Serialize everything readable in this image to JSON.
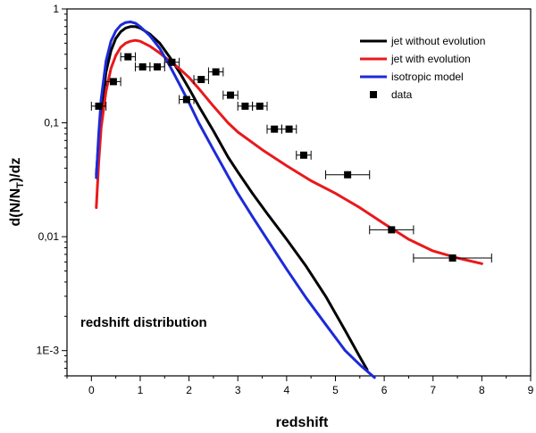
{
  "chart_data": {
    "type": "line",
    "title": "",
    "xlabel": "redshift",
    "ylabel_main": "d(N/N",
    "ylabel_sub": "T",
    "ylabel_tail": ")/dz",
    "annotation": "redshift distribution",
    "xlim": [
      -0.5,
      9
    ],
    "ylim": [
      0.0006,
      1
    ],
    "y_scale": "log",
    "grid": false,
    "legend_position": "top-right",
    "x_ticks": [
      0,
      1,
      2,
      3,
      4,
      5,
      6,
      7,
      8,
      9
    ],
    "x_tick_labels": [
      "0",
      "1",
      "2",
      "3",
      "4",
      "5",
      "6",
      "7",
      "8",
      "9"
    ],
    "y_ticks": [
      0.001,
      0.01,
      0.1,
      1
    ],
    "y_tick_labels": [
      "1E-3",
      "0,01",
      "0,1",
      "1"
    ],
    "series": [
      {
        "name": "jet without evolution",
        "color": "#000000",
        "x": [
          0.1,
          0.15,
          0.2,
          0.3,
          0.4,
          0.5,
          0.6,
          0.7,
          0.8,
          0.9,
          1.0,
          1.2,
          1.4,
          1.6,
          1.8,
          2.0,
          2.2,
          2.5,
          2.8,
          3.0,
          3.3,
          3.6,
          4.0,
          4.4,
          4.8,
          5.2,
          5.5,
          5.65
        ],
        "y": [
          0.035,
          0.07,
          0.13,
          0.28,
          0.43,
          0.55,
          0.63,
          0.68,
          0.7,
          0.7,
          0.68,
          0.6,
          0.5,
          0.38,
          0.28,
          0.2,
          0.14,
          0.085,
          0.05,
          0.037,
          0.024,
          0.016,
          0.0095,
          0.0055,
          0.003,
          0.0015,
          0.00088,
          0.00068
        ]
      },
      {
        "name": "jet with evolution",
        "color": "#e8191c",
        "x": [
          0.1,
          0.15,
          0.2,
          0.3,
          0.4,
          0.5,
          0.6,
          0.7,
          0.8,
          0.9,
          1.0,
          1.2,
          1.4,
          1.6,
          1.8,
          2.0,
          2.2,
          2.5,
          2.8,
          3.0,
          3.5,
          4.0,
          4.5,
          5.0,
          5.5,
          6.0,
          6.5,
          7.0,
          7.5,
          8.0
        ],
        "y": [
          0.018,
          0.045,
          0.09,
          0.19,
          0.3,
          0.39,
          0.46,
          0.5,
          0.52,
          0.53,
          0.52,
          0.47,
          0.41,
          0.35,
          0.3,
          0.25,
          0.2,
          0.14,
          0.1,
          0.083,
          0.058,
          0.042,
          0.031,
          0.024,
          0.018,
          0.013,
          0.0095,
          0.0075,
          0.0065,
          0.0058
        ]
      },
      {
        "name": "isotropic model",
        "color": "#1c2ad9",
        "x": [
          0.1,
          0.15,
          0.2,
          0.3,
          0.4,
          0.5,
          0.6,
          0.7,
          0.8,
          0.9,
          1.0,
          1.2,
          1.4,
          1.6,
          1.8,
          2.0,
          2.2,
          2.5,
          2.8,
          3.0,
          3.3,
          3.6,
          4.0,
          4.4,
          4.8,
          5.2,
          5.5,
          5.8
        ],
        "y": [
          0.033,
          0.08,
          0.16,
          0.35,
          0.52,
          0.64,
          0.72,
          0.76,
          0.77,
          0.75,
          0.7,
          0.58,
          0.45,
          0.32,
          0.22,
          0.15,
          0.1,
          0.058,
          0.034,
          0.024,
          0.015,
          0.0095,
          0.0052,
          0.0029,
          0.0017,
          0.001,
          0.00075,
          0.00058
        ]
      }
    ],
    "data_points": {
      "name": "data",
      "marker": "square",
      "color": "#000000",
      "points": [
        {
          "x": 0.15,
          "y": 0.14,
          "xerr": 0.15
        },
        {
          "x": 0.45,
          "y": 0.23,
          "xerr": 0.15
        },
        {
          "x": 0.75,
          "y": 0.38,
          "xerr": 0.15
        },
        {
          "x": 1.05,
          "y": 0.31,
          "xerr": 0.15
        },
        {
          "x": 1.35,
          "y": 0.31,
          "xerr": 0.15
        },
        {
          "x": 1.65,
          "y": 0.34,
          "xerr": 0.15
        },
        {
          "x": 1.95,
          "y": 0.16,
          "xerr": 0.15
        },
        {
          "x": 2.25,
          "y": 0.24,
          "xerr": 0.15
        },
        {
          "x": 2.55,
          "y": 0.28,
          "xerr": 0.15
        },
        {
          "x": 2.85,
          "y": 0.175,
          "xerr": 0.15
        },
        {
          "x": 3.15,
          "y": 0.14,
          "xerr": 0.15
        },
        {
          "x": 3.45,
          "y": 0.14,
          "xerr": 0.15
        },
        {
          "x": 3.75,
          "y": 0.088,
          "xerr": 0.15
        },
        {
          "x": 4.05,
          "y": 0.088,
          "xerr": 0.15
        },
        {
          "x": 4.35,
          "y": 0.052,
          "xerr": 0.15
        },
        {
          "x": 5.25,
          "y": 0.035,
          "xerr": 0.45
        },
        {
          "x": 6.15,
          "y": 0.0115,
          "xerr": 0.45
        },
        {
          "x": 7.4,
          "y": 0.0065,
          "xerr": 0.8
        }
      ]
    }
  }
}
